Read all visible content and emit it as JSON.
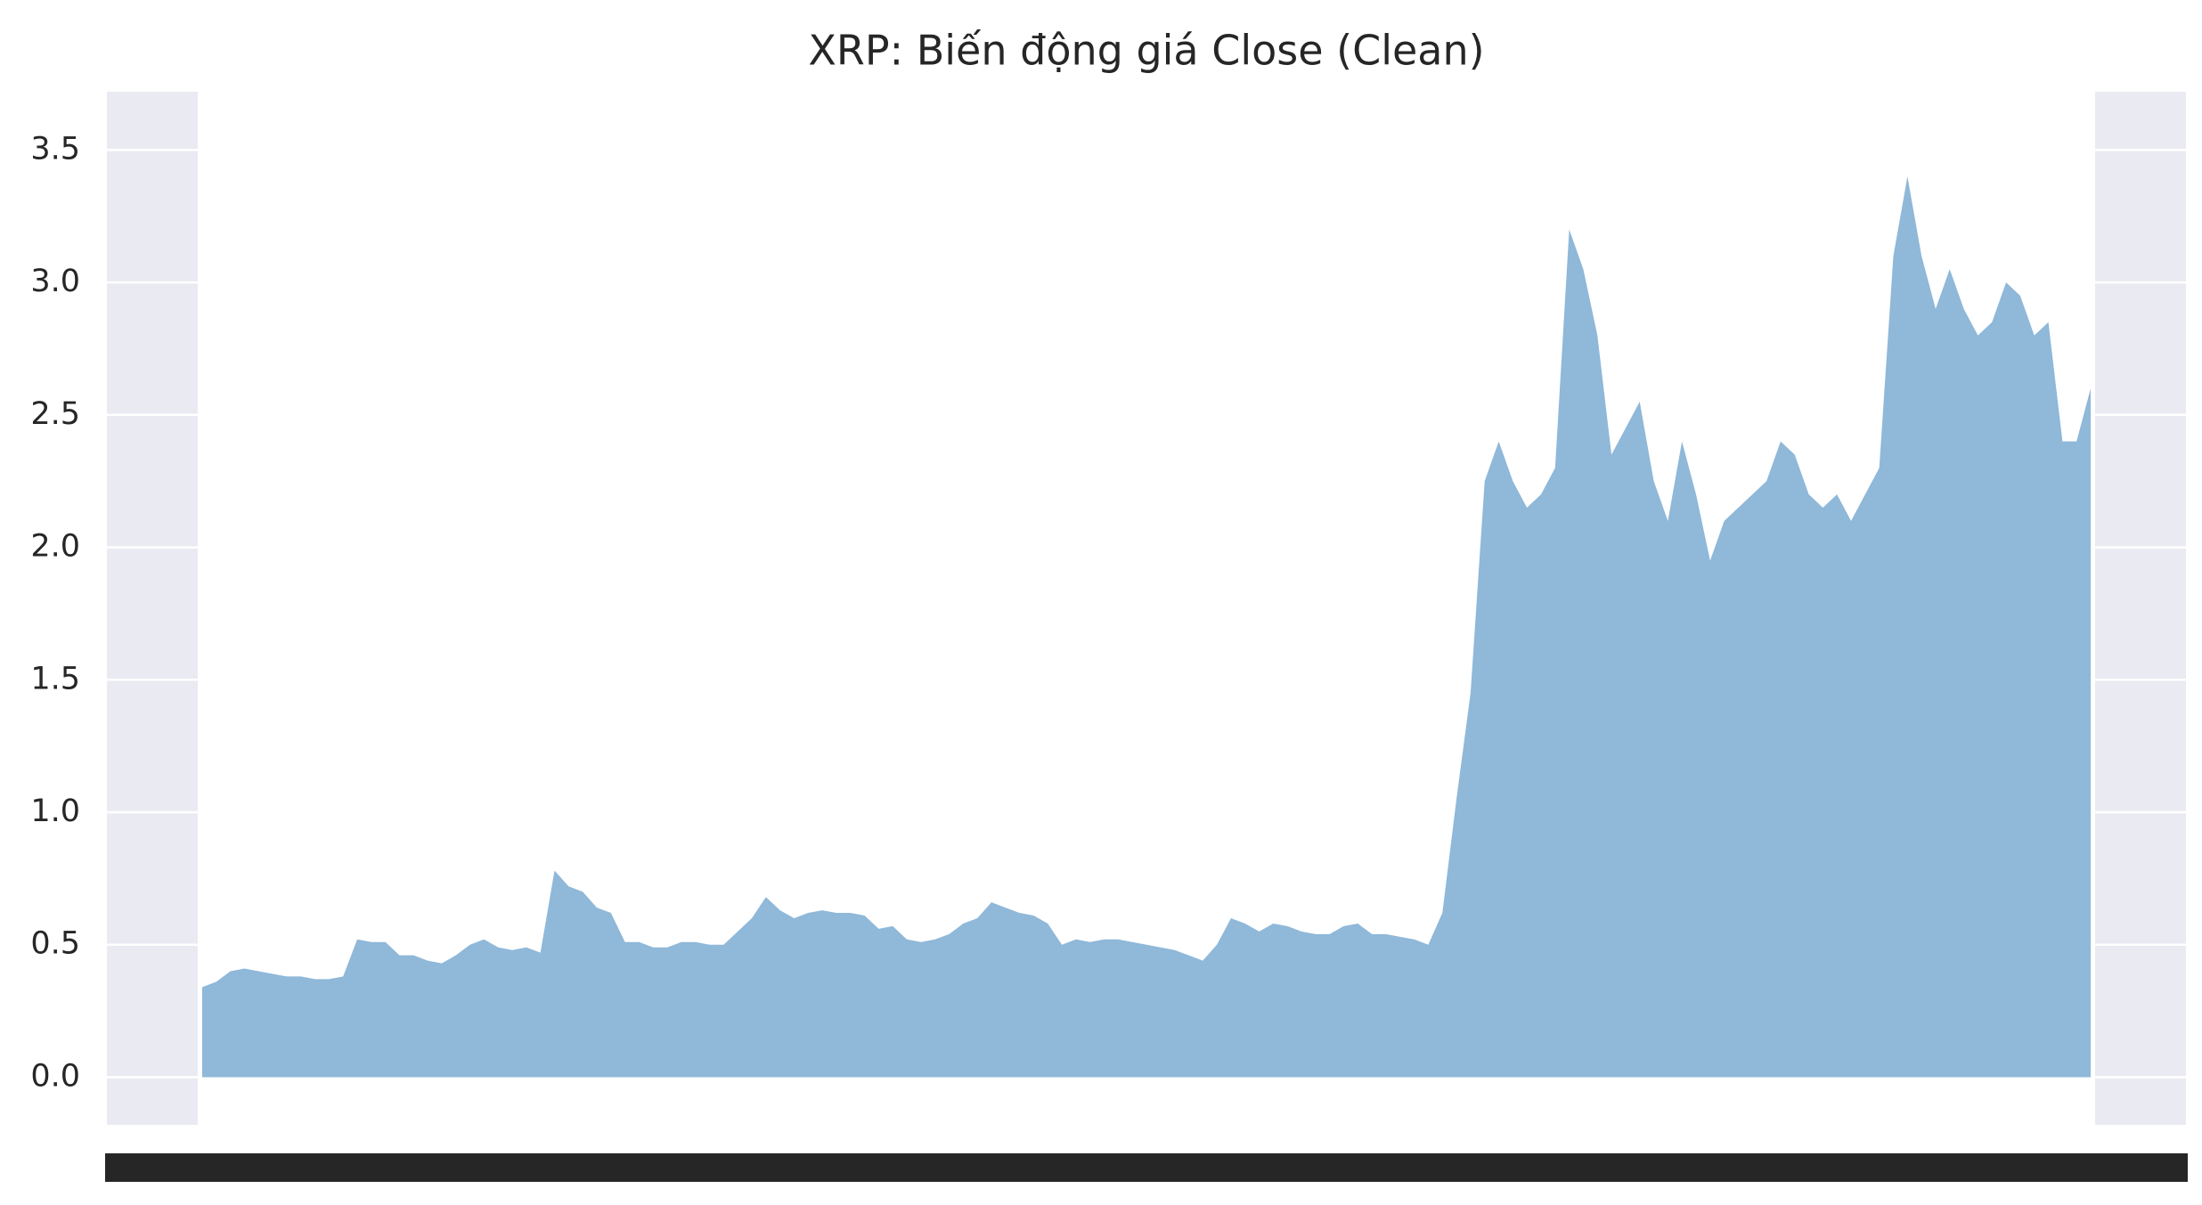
{
  "chart_data": {
    "type": "area",
    "title": "XRP: Biến động giá Close (Clean)",
    "categories": [
      null,
      null,
      null,
      null,
      null,
      null,
      null,
      null,
      null,
      null,
      null,
      null,
      null,
      null,
      null,
      null,
      null,
      null,
      null,
      null,
      null,
      null,
      null,
      null,
      null,
      null,
      null,
      null,
      null,
      null,
      null,
      null,
      null,
      null,
      null,
      null,
      null,
      null,
      null,
      null,
      null,
      null,
      null,
      null,
      null,
      null,
      null,
      null,
      null,
      null,
      null,
      null,
      null,
      null,
      null,
      null,
      null,
      null,
      null,
      null,
      null,
      null,
      null,
      null,
      null,
      null,
      null,
      null,
      null,
      null,
      null,
      null,
      null,
      null,
      null,
      null,
      null,
      null,
      null,
      null,
      null,
      null,
      null,
      null,
      null,
      null,
      null,
      null,
      null,
      null,
      null,
      null,
      null,
      null,
      null,
      null,
      null,
      null,
      null,
      null,
      null,
      null,
      null,
      null,
      null,
      null,
      null,
      null,
      null,
      null,
      null,
      null,
      null,
      null,
      null,
      null,
      null,
      null,
      null,
      null,
      null,
      null,
      null,
      null,
      null,
      null,
      null,
      null,
      null,
      null,
      null,
      null,
      null,
      null,
      null
    ],
    "values": [
      0.34,
      0.36,
      0.4,
      0.41,
      0.4,
      0.39,
      0.38,
      0.38,
      0.37,
      0.37,
      0.38,
      0.52,
      0.51,
      0.51,
      0.46,
      0.46,
      0.44,
      0.43,
      0.46,
      0.5,
      0.52,
      0.49,
      0.48,
      0.49,
      0.47,
      0.78,
      0.72,
      0.7,
      0.64,
      0.62,
      0.51,
      0.51,
      0.49,
      0.49,
      0.51,
      0.51,
      0.5,
      0.5,
      0.55,
      0.6,
      0.68,
      0.63,
      0.6,
      0.62,
      0.63,
      0.62,
      0.62,
      0.61,
      0.56,
      0.57,
      0.52,
      0.51,
      0.52,
      0.54,
      0.58,
      0.6,
      0.66,
      0.64,
      0.62,
      0.61,
      0.58,
      0.5,
      0.52,
      0.51,
      0.52,
      0.52,
      0.51,
      0.5,
      0.49,
      0.48,
      0.46,
      0.44,
      0.5,
      0.6,
      0.58,
      0.55,
      0.58,
      0.57,
      0.55,
      0.54,
      0.54,
      0.57,
      0.58,
      0.54,
      0.54,
      0.53,
      0.52,
      0.5,
      0.62,
      1.05,
      1.45,
      2.25,
      2.4,
      2.25,
      2.15,
      2.2,
      2.3,
      3.2,
      3.05,
      2.8,
      2.35,
      2.45,
      2.55,
      2.25,
      2.1,
      2.4,
      2.2,
      1.95,
      2.1,
      2.15,
      2.2,
      2.25,
      2.4,
      2.35,
      2.2,
      2.15,
      2.2,
      2.1,
      2.2,
      2.3,
      3.1,
      3.4,
      3.1,
      2.9,
      3.05,
      2.9,
      2.8,
      2.85,
      3.0,
      2.95,
      2.8,
      2.85,
      2.4,
      2.4,
      2.6
    ],
    "color": "#8fb8d9",
    "ylim": [
      -0.18,
      3.72
    ],
    "yticks": [
      {
        "value": 0,
        "label": "0.0"
      },
      0.5,
      {
        "value": 1,
        "label": "1.0"
      },
      1.5,
      {
        "value": 2,
        "label": "2.0"
      },
      2.5,
      {
        "value": 3,
        "label": "3.0"
      },
      3.5
    ],
    "grid": true
  }
}
